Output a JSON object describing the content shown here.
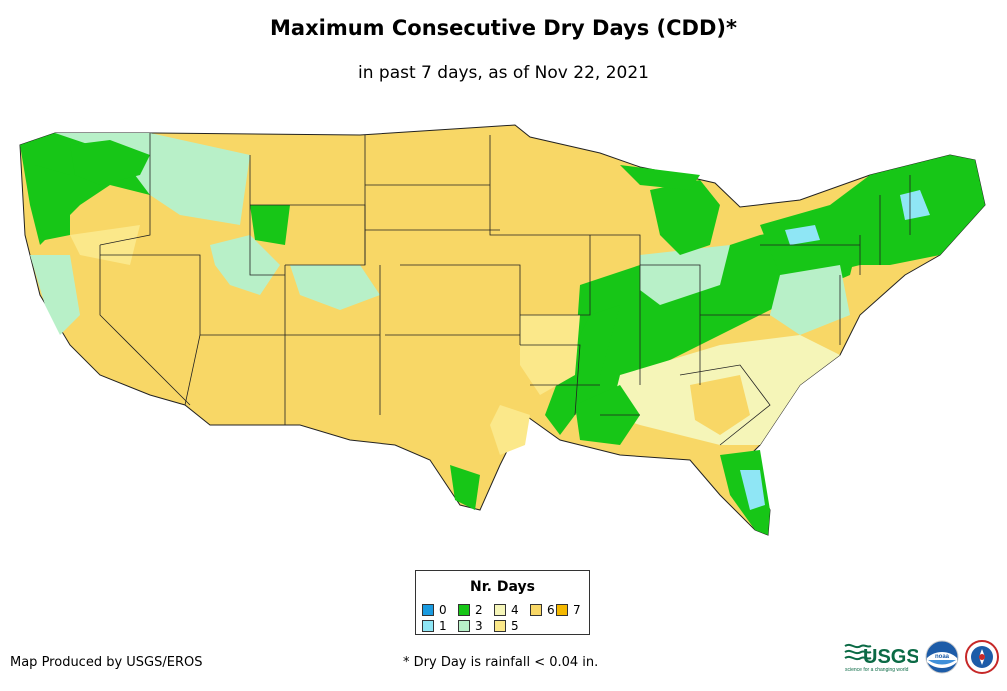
{
  "title": "Maximum Consecutive Dry Days (CDD)*",
  "subtitle": "in past 7 days, as of Nov 22, 2021",
  "legend": {
    "title": "Nr. Days",
    "items": [
      {
        "label": "0",
        "color": "#1a9be0"
      },
      {
        "label": "1",
        "color": "#8fe6f5"
      },
      {
        "label": "2",
        "color": "#17c617"
      },
      {
        "label": "3",
        "color": "#b8f0c8"
      },
      {
        "label": "4",
        "color": "#f5f5b8"
      },
      {
        "label": "5",
        "color": "#fbe88a"
      },
      {
        "label": "6",
        "color": "#f8d766"
      },
      {
        "label": "7",
        "color": "#f4b800"
      }
    ]
  },
  "footer": {
    "credit": "Map Produced by USGS/EROS",
    "note": "* Dry Day is rainfall < 0.04 in."
  },
  "logos": {
    "usgs": "USGS",
    "usgs_tagline": "science for a changing world",
    "noaa": "noaa"
  }
}
